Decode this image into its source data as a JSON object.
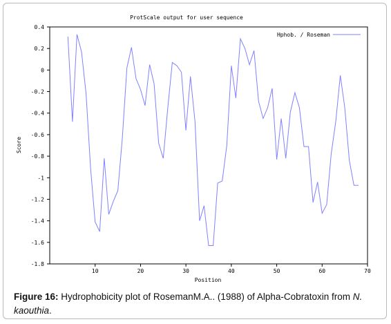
{
  "caption": {
    "label": "Figure 16:",
    "text": " Hydrophobicity plot of RosemanM.A.. (1988) of Alpha-Cobratoxin from ",
    "species": "N. kaouthia",
    "end": "."
  },
  "chart_data": {
    "type": "line",
    "title": "ProtScale output for user sequence",
    "xlabel": "Position",
    "ylabel": "Score",
    "xlim": [
      0,
      70
    ],
    "ylim": [
      -1.8,
      0.4
    ],
    "xticks": [
      10,
      20,
      30,
      40,
      50,
      60,
      70
    ],
    "yticks": [
      0.4,
      0.2,
      0,
      -0.2,
      -0.4,
      -0.6,
      -0.8,
      -1,
      -1.2,
      -1.4,
      -1.6,
      -1.8
    ],
    "ytick_labels": [
      "0.4",
      "0.2",
      "0",
      "-0.2",
      "-0.4",
      "-0.6",
      "-0.8",
      "-1",
      "-1.2",
      "-1.4",
      "-1.6",
      "-1.8"
    ],
    "xtick_labels": [
      "10",
      "20",
      "30",
      "40",
      "50",
      "60",
      "70"
    ],
    "grid": false,
    "legend_position": "top-right",
    "series": [
      {
        "name": "Hphob. / Roseman",
        "color": "#8080ff",
        "x": [
          4,
          5,
          6,
          7,
          8,
          9,
          10,
          11,
          12,
          13,
          14,
          15,
          16,
          17,
          18,
          19,
          20,
          21,
          22,
          23,
          24,
          25,
          26,
          27,
          28,
          29,
          30,
          31,
          32,
          33,
          34,
          35,
          36,
          37,
          38,
          39,
          40,
          41,
          42,
          43,
          44,
          45,
          46,
          47,
          48,
          49,
          50,
          51,
          52,
          53,
          54,
          55,
          56,
          57,
          58,
          59,
          60,
          61,
          62,
          63,
          64,
          65,
          66,
          67,
          68
        ],
        "values": [
          0.31,
          -0.48,
          0.33,
          0.17,
          -0.22,
          -0.91,
          -1.41,
          -1.5,
          -0.82,
          -1.34,
          -1.22,
          -1.12,
          -0.63,
          0.02,
          0.21,
          -0.08,
          -0.18,
          -0.33,
          0.05,
          -0.13,
          -0.68,
          -0.82,
          -0.35,
          0.07,
          0.04,
          -0.02,
          -0.56,
          -0.06,
          -0.48,
          -1.4,
          -1.26,
          -1.63,
          -1.63,
          -1.05,
          -1.03,
          -0.7,
          0.04,
          -0.26,
          0.29,
          0.2,
          0.05,
          0.18,
          -0.29,
          -0.45,
          -0.35,
          -0.17,
          -0.83,
          -0.45,
          -0.82,
          -0.39,
          -0.21,
          -0.35,
          -0.71,
          -0.71,
          -1.23,
          -1.04,
          -1.33,
          -1.25,
          -0.78,
          -0.48,
          -0.05,
          -0.35,
          -0.84,
          -1.07,
          -1.07
        ]
      }
    ]
  }
}
